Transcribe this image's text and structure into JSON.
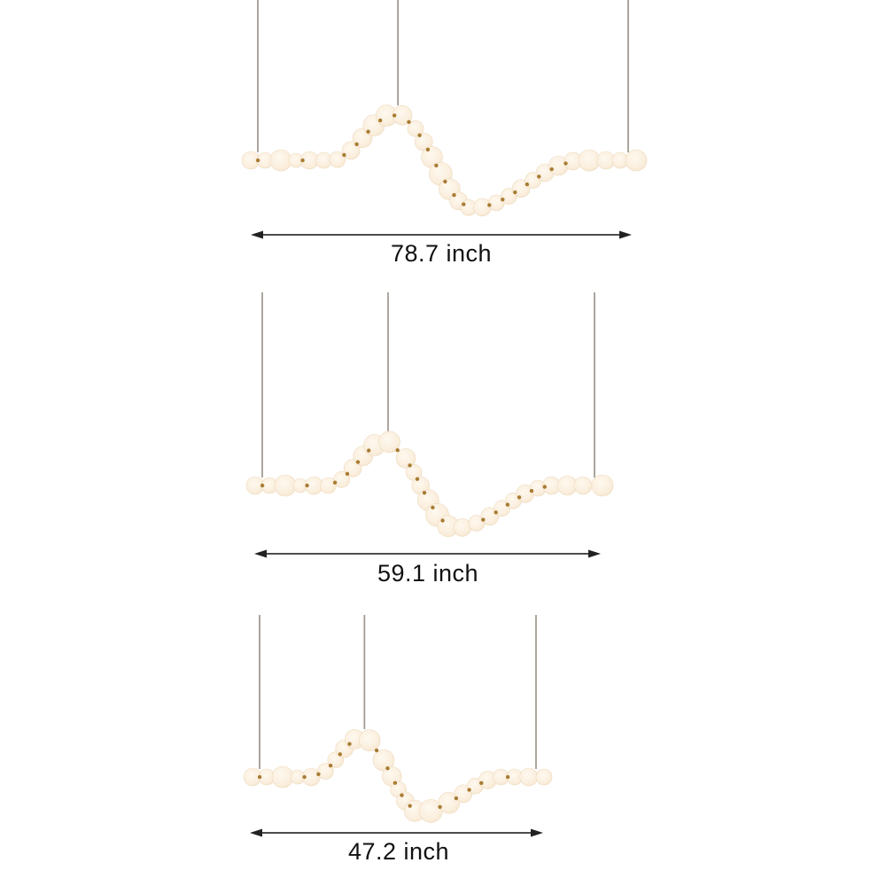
{
  "page": {
    "type": "pendant-light-size-diagram",
    "background": "#ffffff"
  },
  "variants": [
    {
      "name": "size-variant-large",
      "width_label": "78.7 inch",
      "width_value": 78.7,
      "unit": "inch"
    },
    {
      "name": "size-variant-medium",
      "width_label": "59.1 inch",
      "width_value": 59.1,
      "unit": "inch"
    },
    {
      "name": "size-variant-small",
      "width_label": "47.2 inch",
      "width_value": 47.2,
      "unit": "inch"
    }
  ],
  "colors": {
    "background": "#ffffff",
    "bead_center": "#fef8ee",
    "bead_fill": "#fbf0e0",
    "bead_edge": "#f5e3c9",
    "bead_stroke": "#eedbbf",
    "wire": "#a39c93",
    "connector_gold": "#a87c33",
    "dimension_line": "#4d4d4d",
    "dimension_head": "#222222",
    "label_text": "#111111"
  }
}
